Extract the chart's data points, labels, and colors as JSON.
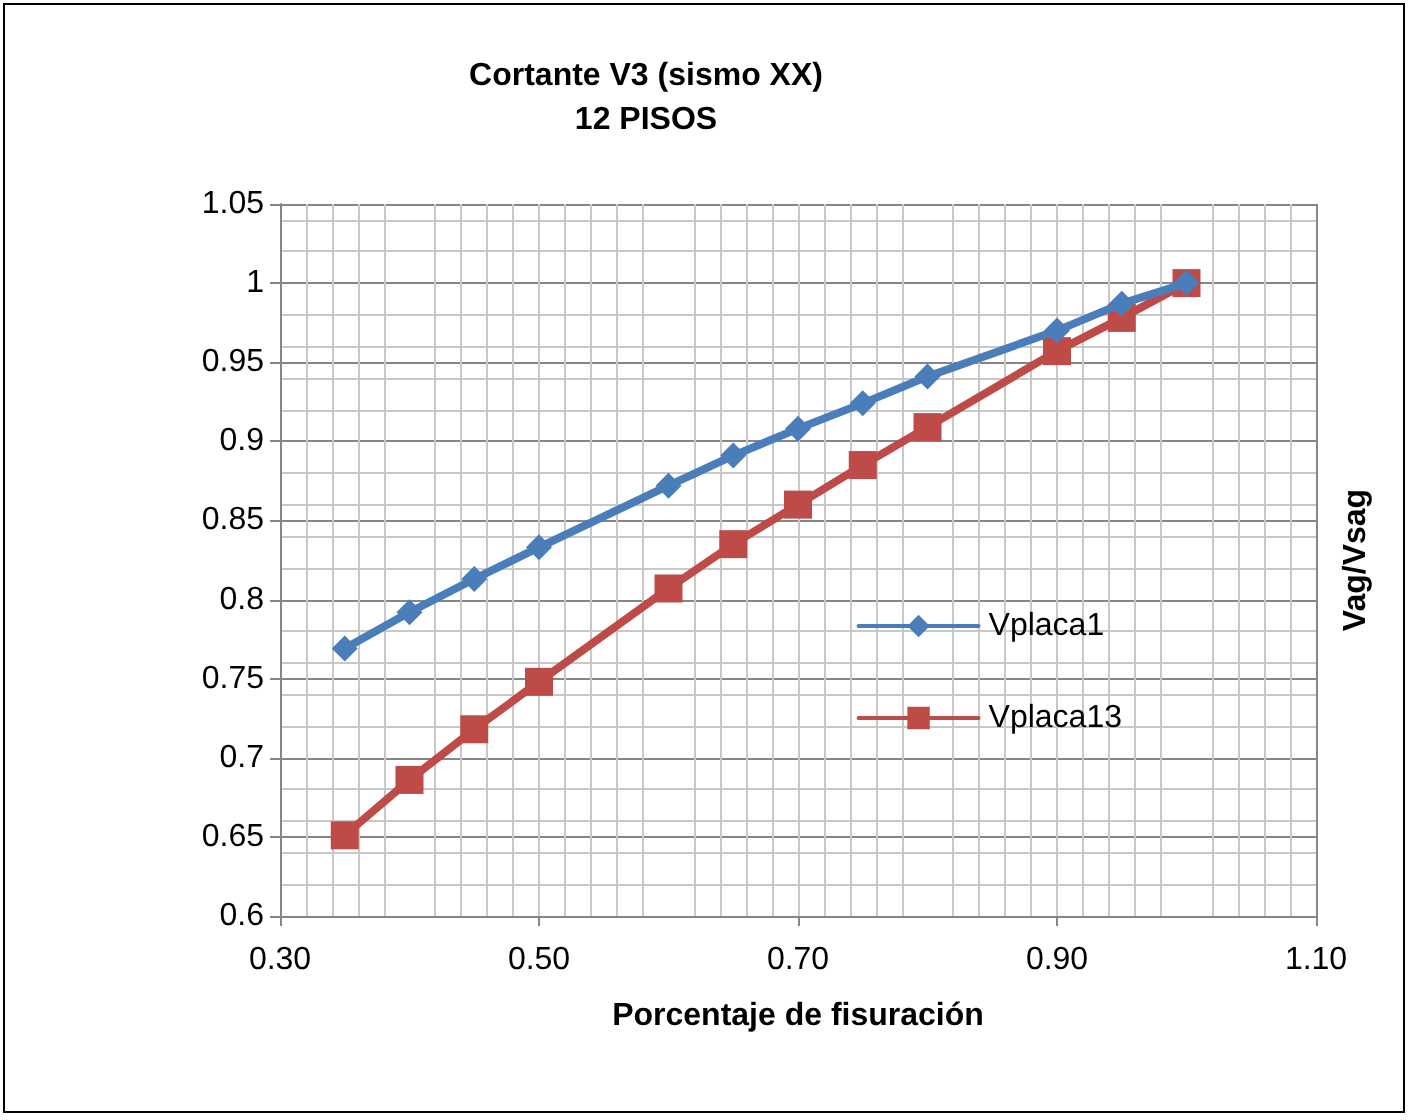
{
  "chart_data": {
    "type": "line",
    "title": "Cortante V3 (sismo XX)\n12 PISOS",
    "xlabel": "Porcentaje de fisuración",
    "ylabel": "Vag/Vsag",
    "x": [
      0.35,
      0.4,
      0.45,
      0.5,
      0.6,
      0.65,
      0.7,
      0.75,
      0.8,
      0.9,
      0.95,
      1.0
    ],
    "series": [
      {
        "name": "Vplaca1",
        "color": "#4a7ebb",
        "marker": "diamond",
        "values": [
          0.769,
          0.792,
          0.813,
          0.833,
          0.872,
          0.891,
          0.908,
          0.924,
          0.941,
          0.97,
          0.987,
          1.0
        ]
      },
      {
        "name": "Vplaca13",
        "color": "#be4b48",
        "marker": "square",
        "values": [
          0.651,
          0.686,
          0.718,
          0.748,
          0.807,
          0.835,
          0.86,
          0.885,
          0.909,
          0.957,
          0.978,
          1.0
        ]
      }
    ],
    "xlim": [
      0.3,
      1.1
    ],
    "xticks": [
      {
        "value": 0.3,
        "label": "0.30"
      },
      {
        "value": 0.5,
        "label": "0.50"
      },
      {
        "value": 0.7,
        "label": "0.70"
      },
      {
        "value": 0.9,
        "label": "0.90"
      },
      {
        "value": 1.1,
        "label": "1.10"
      }
    ],
    "ylim": [
      0.6,
      1.05
    ],
    "yticks": [
      0.6,
      0.65,
      0.7,
      0.75,
      0.8,
      0.85,
      0.9,
      0.95,
      1,
      1.05
    ],
    "grid": true,
    "legend": "right",
    "line_style": "solid"
  }
}
